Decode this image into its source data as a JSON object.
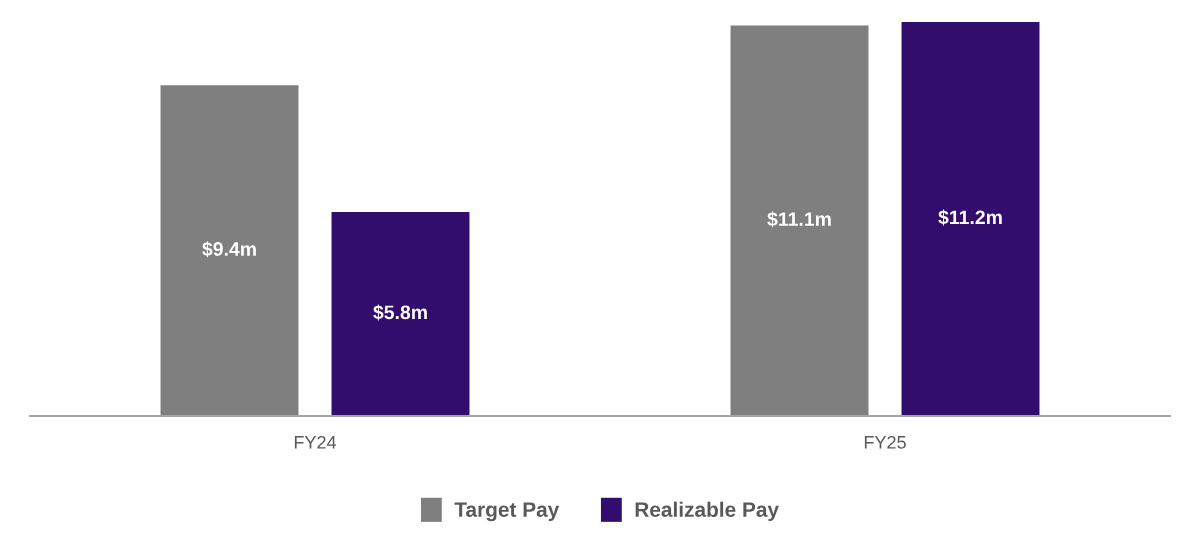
{
  "chart_data": {
    "type": "bar",
    "categories": [
      "FY24",
      "FY25"
    ],
    "series": [
      {
        "name": "Target Pay",
        "color": "#7f7f7f",
        "values": [
          9.4,
          11.1
        ],
        "value_labels": [
          "$9.4m",
          "$11.1m"
        ]
      },
      {
        "name": "Realizable Pay",
        "color": "#320d6e",
        "values": [
          5.8,
          11.2
        ],
        "value_labels": [
          "$5.8m",
          "$11.2m"
        ]
      }
    ],
    "grid": false,
    "legend": "bottom"
  }
}
